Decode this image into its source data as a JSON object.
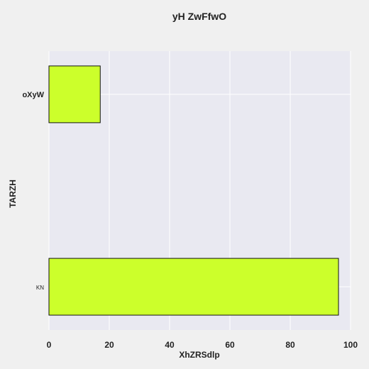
{
  "chart_data": {
    "type": "bar",
    "orientation": "horizontal",
    "title": "yH ZwFfwO",
    "xlabel": "XhZRSdlp",
    "ylabel": "TARZH",
    "categories": [
      "oXyW",
      "KN"
    ],
    "values": [
      17,
      96
    ],
    "xlim": [
      0,
      100
    ],
    "xticks": [
      0,
      20,
      40,
      60,
      80,
      100
    ],
    "grid": true,
    "legend": "none",
    "colors": {
      "bar": "#ccff2b",
      "bar_edge": "#111111",
      "plot_background": "#e9e9f1",
      "grid": "#ffffff",
      "figure_background": "#f0f0f0"
    }
  }
}
